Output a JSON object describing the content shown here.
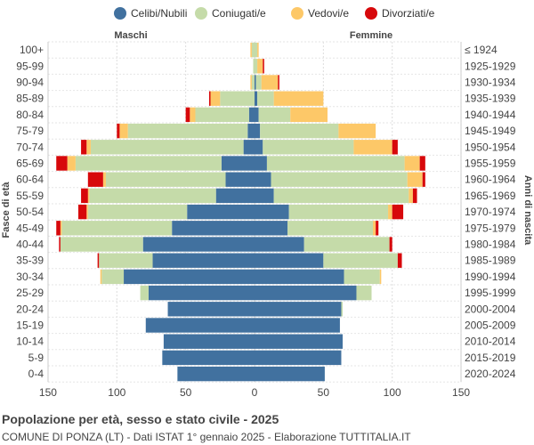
{
  "chart_data": {
    "type": "population-pyramid",
    "title": "Popolazione per età, sesso e stato civile - 2025",
    "subtitle": "COMUNE DI PONZA (LT) - Dati ISTAT 1° gennaio 2025 - Elaborazione TUTTITALIA.IT",
    "left_group_label": "Maschi",
    "right_group_label": "Femmine",
    "ylabel_left": "Fasce di età",
    "ylabel_right": "Anni di nascita",
    "x_ticks": [
      "150",
      "100",
      "50",
      "0",
      "50",
      "100",
      "150"
    ],
    "xlim": [
      -150,
      150
    ],
    "grid": true,
    "legend_position": "top",
    "legend": [
      {
        "key": "celibi",
        "label": "Celibi/Nubili",
        "color": "#41719f"
      },
      {
        "key": "coniugati",
        "label": "Coniugati/e",
        "color": "#c5dba9"
      },
      {
        "key": "vedovi",
        "label": "Vedovi/e",
        "color": "#fdc868"
      },
      {
        "key": "divorziati",
        "label": "Divorziati/e",
        "color": "#d7080b"
      }
    ],
    "age_groups": [
      "100+",
      "95-99",
      "90-94",
      "85-89",
      "80-84",
      "75-79",
      "70-74",
      "65-69",
      "60-64",
      "55-59",
      "50-54",
      "45-49",
      "40-44",
      "35-39",
      "30-34",
      "25-29",
      "20-24",
      "15-19",
      "10-14",
      "5-9",
      "0-4"
    ],
    "birth_years": [
      "≤ 1924",
      "1925-1929",
      "1930-1934",
      "1935-1939",
      "1940-1944",
      "1945-1949",
      "1950-1954",
      "1955-1959",
      "1960-1964",
      "1965-1969",
      "1970-1974",
      "1975-1979",
      "1980-1984",
      "1985-1989",
      "1990-1994",
      "1995-1999",
      "2000-2004",
      "2005-2009",
      "2010-2014",
      "2015-2019",
      "2020-2024"
    ],
    "males": [
      [
        0,
        2,
        1,
        0
      ],
      [
        0,
        1,
        0,
        0
      ],
      [
        0,
        2,
        1,
        0
      ],
      [
        0,
        25,
        7,
        1
      ],
      [
        4,
        39,
        4,
        3
      ],
      [
        5,
        87,
        6,
        2
      ],
      [
        8,
        111,
        3,
        4
      ],
      [
        24,
        106,
        6,
        8
      ],
      [
        21,
        87,
        2,
        11
      ],
      [
        28,
        92,
        1,
        5
      ],
      [
        49,
        72,
        1,
        6
      ],
      [
        60,
        80,
        1,
        3
      ],
      [
        81,
        60,
        0,
        1
      ],
      [
        74,
        39,
        0,
        1
      ],
      [
        95,
        16,
        1,
        0
      ],
      [
        77,
        6,
        0,
        0
      ],
      [
        63,
        0,
        0,
        0
      ],
      [
        79,
        0,
        0,
        0
      ],
      [
        66,
        0,
        0,
        0
      ],
      [
        67,
        0,
        0,
        0
      ],
      [
        56,
        0,
        0,
        0
      ]
    ],
    "females": [
      [
        0,
        2,
        1,
        0
      ],
      [
        0,
        2,
        4,
        1
      ],
      [
        1,
        4,
        12,
        1
      ],
      [
        2,
        12,
        36,
        0
      ],
      [
        3,
        23,
        27,
        0
      ],
      [
        4,
        57,
        27,
        0
      ],
      [
        6,
        66,
        28,
        4
      ],
      [
        9,
        100,
        11,
        4
      ],
      [
        12,
        99,
        11,
        2
      ],
      [
        14,
        98,
        3,
        3
      ],
      [
        25,
        72,
        3,
        8
      ],
      [
        24,
        62,
        2,
        2
      ],
      [
        36,
        62,
        0,
        2
      ],
      [
        50,
        54,
        0,
        3
      ],
      [
        65,
        26,
        1,
        0
      ],
      [
        74,
        11,
        0,
        0
      ],
      [
        63,
        1,
        0,
        0
      ],
      [
        62,
        0,
        0,
        0
      ],
      [
        64,
        0,
        0,
        0
      ],
      [
        63,
        0,
        0,
        0
      ],
      [
        51,
        0,
        0,
        0
      ]
    ]
  }
}
